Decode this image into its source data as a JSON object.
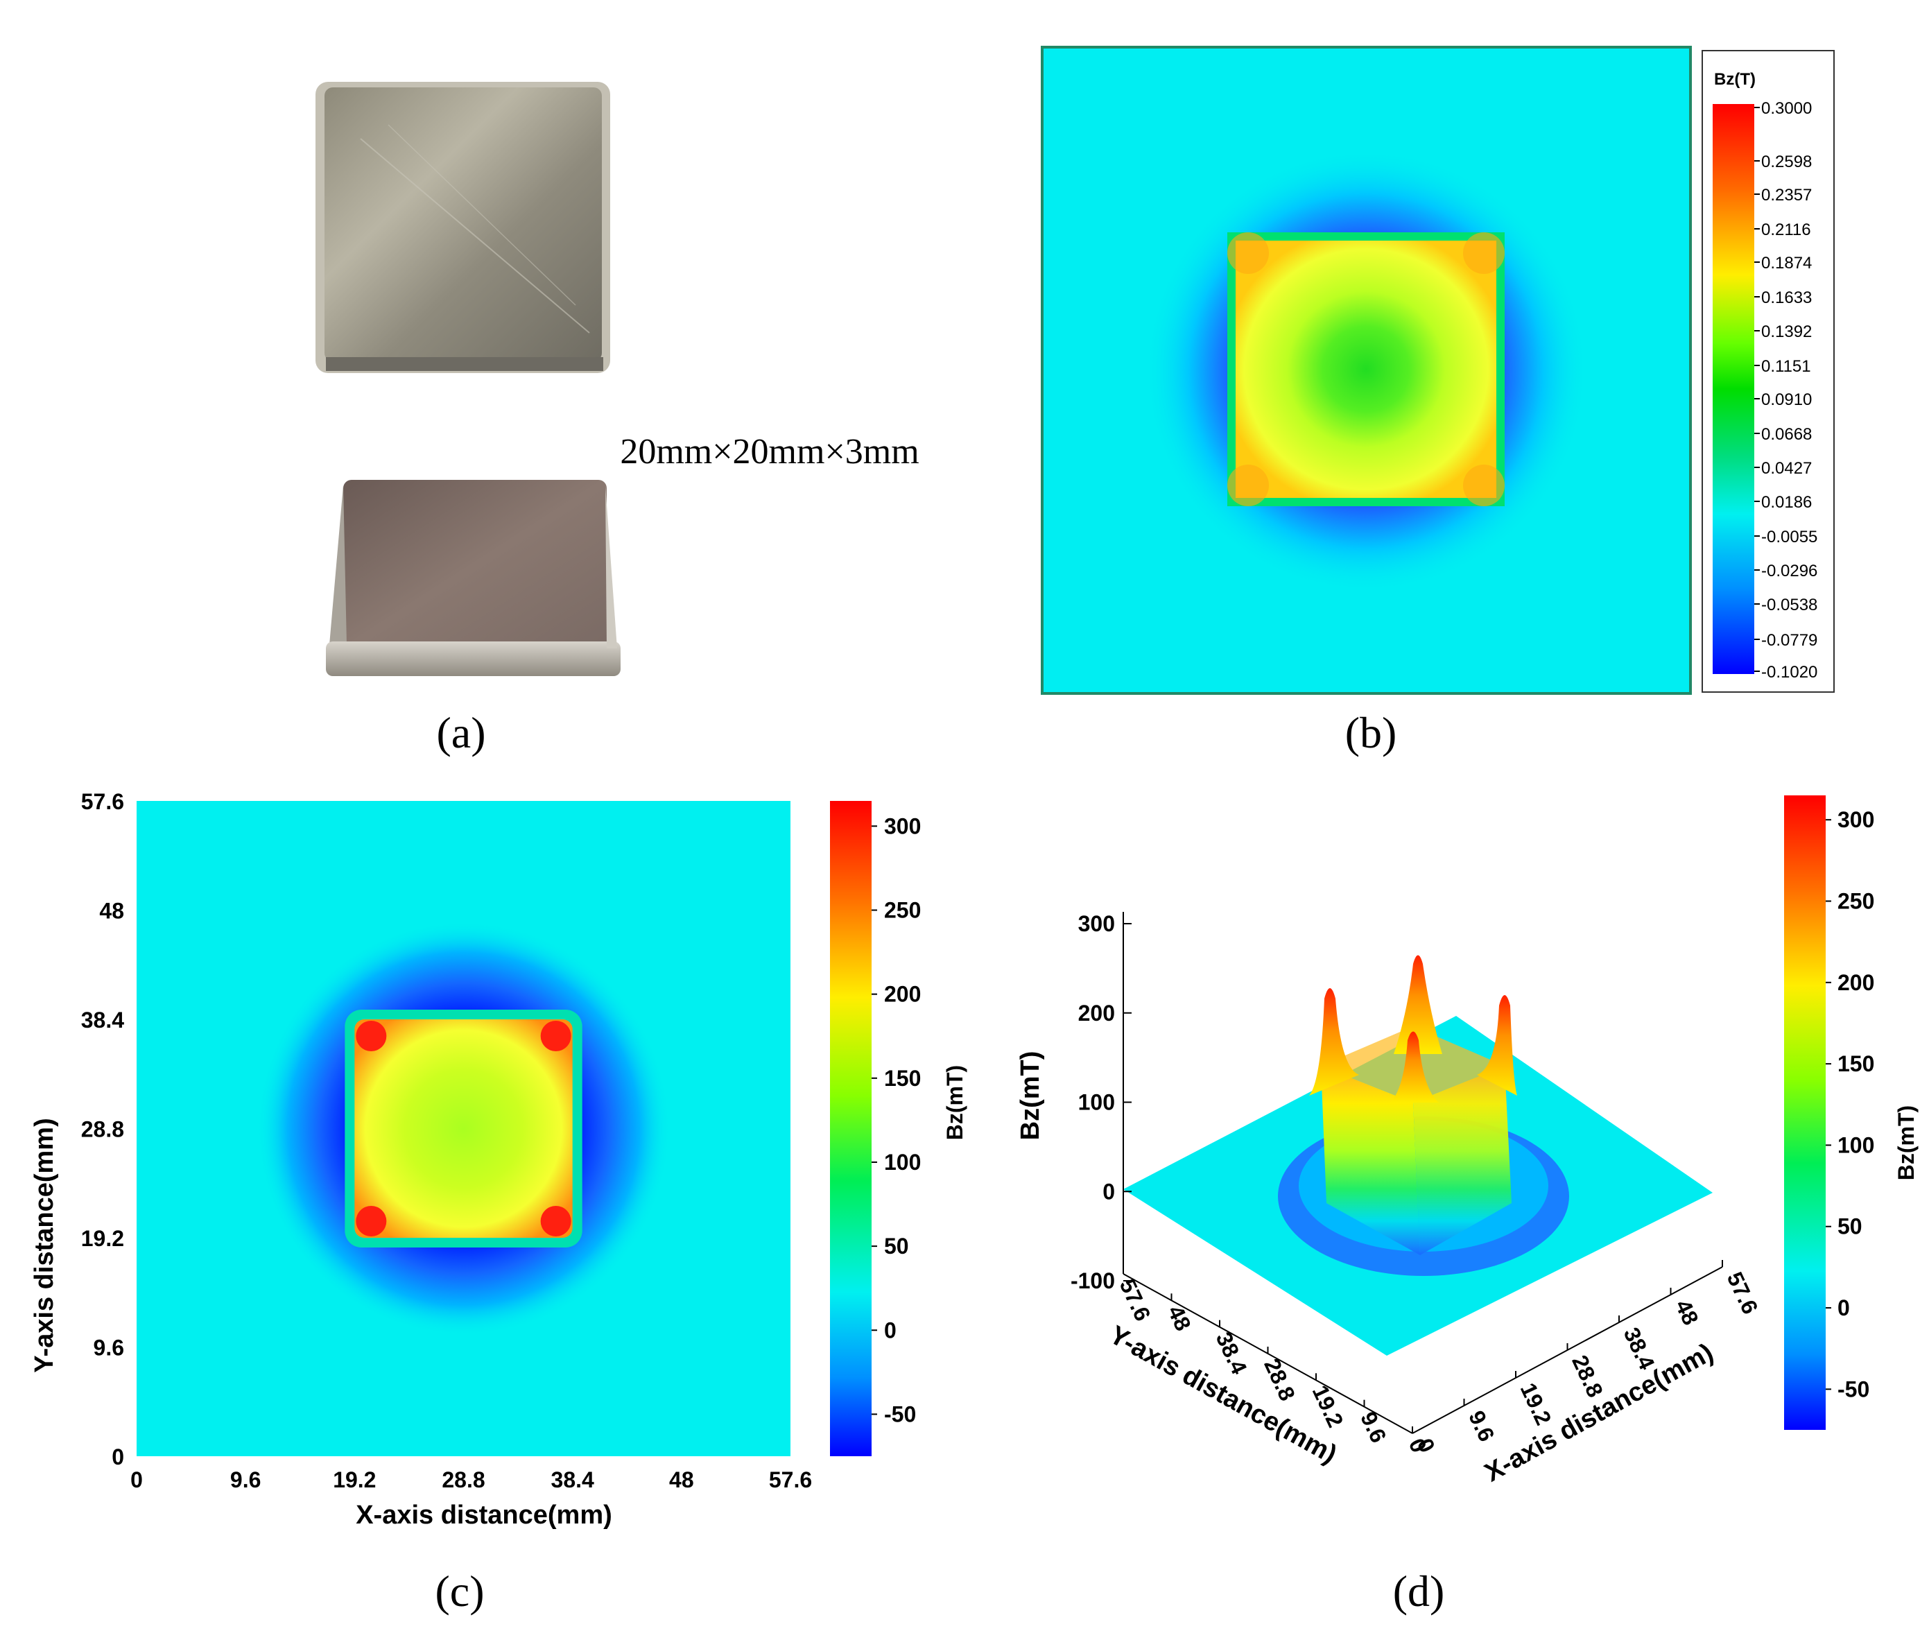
{
  "panel_a": {
    "dimension_label": "20mm×20mm×3mm",
    "caption": "(a)"
  },
  "panel_b": {
    "caption": "(b)",
    "colorbar": {
      "title": "Bz(T)",
      "ticks": [
        "0.3000",
        "0.2598",
        "0.2357",
        "0.2116",
        "0.1874",
        "0.1633",
        "0.1392",
        "0.1151",
        "0.0910",
        "0.0668",
        "0.0427",
        "0.0186",
        "-0.0055",
        "-0.0296",
        "-0.0538",
        "-0.0779",
        "-0.1020"
      ]
    }
  },
  "panel_c": {
    "caption": "(c)"
  },
  "panel_d": {
    "caption": "(d)"
  },
  "chart_data": [
    {
      "panel": "c",
      "type": "heatmap",
      "xlabel": "X-axis distance(mm)",
      "ylabel": "Y-axis distance(mm)",
      "x_ticks": [
        "0",
        "9.6",
        "19.2",
        "28.8",
        "38.4",
        "48",
        "57.6"
      ],
      "y_ticks": [
        "0",
        "9.6",
        "19.2",
        "28.8",
        "38.4",
        "48",
        "57.6"
      ],
      "xlim": [
        0,
        57.6
      ],
      "ylim": [
        0,
        57.6
      ],
      "colorbar_label": "Bz(mT)",
      "colorbar_ticks": [
        "300",
        "250",
        "200",
        "150",
        "100",
        "50",
        "0",
        "-50"
      ],
      "clim": [
        -75,
        315
      ],
      "magnet_square_x": [
        19.2,
        38.4
      ],
      "magnet_square_y": [
        19.2,
        38.4
      ]
    },
    {
      "panel": "d",
      "type": "surface",
      "zlabel": "Bz(mT)",
      "xlabel": "X-axis distance(mm)",
      "ylabel": "Y-axis distance(mm)",
      "z_ticks": [
        "300",
        "200",
        "100",
        "0",
        "-100"
      ],
      "x_ticks": [
        "0",
        "9.6",
        "19.2",
        "28.8",
        "38.4",
        "48",
        "57.6"
      ],
      "y_ticks": [
        "57.6",
        "48",
        "38.4",
        "28.8",
        "19.2",
        "9.6",
        "0"
      ],
      "colorbar_label": "Bz(mT)",
      "colorbar_ticks": [
        "300",
        "250",
        "200",
        "150",
        "100",
        "50",
        "0",
        "-50"
      ],
      "peak_values_mT": [
        315,
        290,
        285,
        235
      ]
    }
  ]
}
